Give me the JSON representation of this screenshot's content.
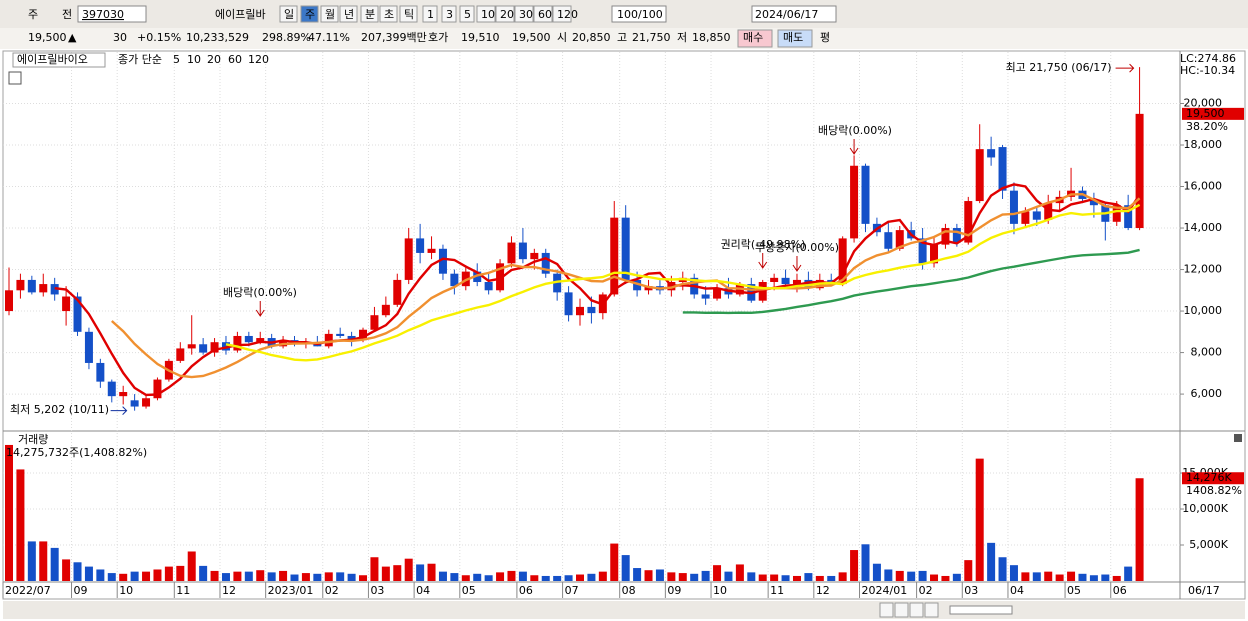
{
  "toolbar": {
    "row1": [
      "주",
      "전",
      "397030",
      "에이프릴바",
      "일",
      "주",
      "월",
      "년",
      "분",
      "초",
      "틱",
      "1",
      "3",
      "5",
      "10",
      "20",
      "30",
      "60",
      "120",
      "100/100",
      "2024/06/17"
    ],
    "row2": [
      "19,500",
      "▲",
      "30",
      "+0.15%",
      "10,233,529",
      "298.89%",
      "47.11%",
      "207,399백만",
      "호가",
      "19,510",
      "19,500",
      "시",
      "20,850",
      "고",
      "21,750",
      "저",
      "18,850",
      "매수",
      "매도",
      "평"
    ]
  },
  "chart_data": {
    "type": "candlestick",
    "title": "에이프릴바이오",
    "ma": {
      "label": "종가 단순",
      "periods": [
        5,
        10,
        20,
        60,
        120
      ],
      "colors": [
        "#e00000",
        "#f09030",
        "#f8f000",
        "#2e9a50",
        "#2090c0"
      ]
    },
    "lc": "LC:274.86",
    "hc": "HC:-10.34",
    "high_label": "최고 21,750 (06/17)",
    "low_label": "최저 5,202 (10/11)",
    "annotations": [
      "배당락(0.00%)",
      "권리락(-49.98%)",
      "무상증자(0.00%)",
      "배당락(0.00%)"
    ],
    "last_price_label": "19,500",
    "last_change_label": "38.20%",
    "last_date": "06/17",
    "categories": [
      "2022/07",
      null,
      null,
      null,
      null,
      null,
      "09",
      null,
      null,
      null,
      "10",
      null,
      null,
      null,
      null,
      "11",
      null,
      null,
      null,
      "12",
      null,
      null,
      null,
      "2023/01",
      null,
      null,
      null,
      null,
      "02",
      null,
      null,
      null,
      "03",
      null,
      null,
      null,
      "04",
      null,
      null,
      null,
      "05",
      null,
      null,
      null,
      null,
      "06",
      null,
      null,
      null,
      "07",
      null,
      null,
      null,
      null,
      "08",
      null,
      null,
      null,
      "09",
      null,
      null,
      null,
      "10",
      null,
      null,
      null,
      null,
      "11",
      null,
      null,
      null,
      "12",
      null,
      null,
      null,
      "2024/01",
      null,
      null,
      null,
      null,
      "02",
      null,
      null,
      null,
      "03",
      null,
      null,
      null,
      "04",
      null,
      null,
      null,
      null,
      "05",
      null,
      null,
      null,
      "06",
      null,
      null
    ],
    "open": [
      10000,
      11000,
      11500,
      10900,
      11300,
      10000,
      10700,
      9000,
      7500,
      6600,
      5900,
      5700,
      5400,
      5800,
      6700,
      7600,
      8200,
      8400,
      8000,
      8500,
      8100,
      8800,
      8500,
      8700,
      8300,
      8600,
      8400,
      8500,
      8300,
      8900,
      8800,
      8600,
      9100,
      9800,
      10300,
      11500,
      13500,
      12800,
      13000,
      11800,
      11200,
      11900,
      11400,
      11000,
      12300,
      13300,
      12500,
      12800,
      11800,
      10900,
      9800,
      10200,
      9900,
      10800,
      14500,
      11500,
      11000,
      11200,
      11000,
      11400,
      11600,
      10800,
      10600,
      11100,
      10800,
      11300,
      10500,
      11400,
      11600,
      11300,
      11500,
      11100,
      11500,
      11300,
      13500,
      17000,
      14200,
      13800,
      13000,
      13900,
      13500,
      12300,
      13200,
      14000,
      13300,
      15300,
      17800,
      17900,
      15800,
      14200,
      14800,
      14400,
      15200,
      15500,
      15800,
      15400,
      15100,
      14300,
      15100,
      14000
    ],
    "high": [
      12100,
      11800,
      11700,
      11800,
      11600,
      11200,
      10900,
      9200,
      7700,
      6700,
      6400,
      6000,
      6000,
      6800,
      7700,
      8500,
      9800,
      8700,
      8700,
      8800,
      9000,
      9000,
      9000,
      8900,
      8800,
      8800,
      8700,
      8800,
      9100,
      9200,
      9000,
      9200,
      10200,
      10700,
      11800,
      14000,
      14200,
      13600,
      13200,
      12000,
      12200,
      12300,
      11800,
      12500,
      13600,
      14000,
      13000,
      13000,
      12000,
      11200,
      10600,
      10700,
      10900,
      15300,
      15100,
      11900,
      11500,
      11500,
      11700,
      11900,
      11800,
      11200,
      11300,
      11600,
      11400,
      11600,
      11500,
      11800,
      12000,
      11800,
      11900,
      11800,
      11800,
      13600,
      17500,
      17100,
      14500,
      14300,
      14100,
      14300,
      14000,
      13600,
      14200,
      14200,
      15500,
      19000,
      18400,
      18000,
      16200,
      15000,
      15000,
      15600,
      15800,
      16900,
      16000,
      15700,
      15200,
      15300,
      15600,
      21750
    ],
    "low": [
      9800,
      10600,
      10800,
      10700,
      10500,
      9300,
      8800,
      7200,
      6300,
      5600,
      5500,
      5202,
      5300,
      5700,
      6600,
      7500,
      7900,
      7900,
      7800,
      7900,
      8000,
      8300,
      8400,
      8200,
      8200,
      8300,
      8200,
      8300,
      8200,
      8700,
      8300,
      8500,
      9000,
      9700,
      10200,
      11300,
      12300,
      12500,
      11500,
      10800,
      11000,
      11200,
      10800,
      10900,
      12100,
      12300,
      12000,
      11600,
      10500,
      9500,
      9300,
      9400,
      9600,
      10700,
      11300,
      10700,
      10800,
      10800,
      10700,
      11000,
      10600,
      10300,
      10500,
      10600,
      10700,
      10400,
      10400,
      11000,
      11100,
      10900,
      11000,
      11000,
      11200,
      11200,
      13300,
      13800,
      13600,
      12800,
      12900,
      13400,
      12000,
      12100,
      13000,
      13100,
      13200,
      15200,
      17000,
      15400,
      13700,
      14000,
      14100,
      14200,
      14800,
      15300,
      15200,
      14500,
      13400,
      14100,
      13900,
      13900
    ],
    "close": [
      11000,
      11500,
      10900,
      11300,
      10800,
      10700,
      9000,
      7500,
      6600,
      5900,
      6100,
      5400,
      5800,
      6700,
      7600,
      8200,
      8400,
      8000,
      8500,
      8100,
      8800,
      8500,
      8700,
      8300,
      8600,
      8400,
      8500,
      8300,
      8900,
      8800,
      8600,
      9100,
      9800,
      10300,
      11500,
      13500,
      12800,
      13000,
      11800,
      11200,
      11900,
      11400,
      11000,
      12300,
      13300,
      12500,
      12800,
      11800,
      10900,
      9800,
      10200,
      9900,
      10800,
      14500,
      11500,
      11000,
      11200,
      11000,
      11400,
      11600,
      10800,
      10600,
      11100,
      10800,
      11300,
      10500,
      11400,
      11600,
      11300,
      11500,
      11100,
      11500,
      11300,
      13500,
      17000,
      14200,
      13800,
      13000,
      13900,
      13500,
      12300,
      13200,
      14000,
      13300,
      15300,
      17800,
      17400,
      15800,
      14200,
      14800,
      14400,
      15200,
      15500,
      15800,
      15400,
      15100,
      14300,
      15100,
      14000,
      19500
    ],
    "ylim": [
      4270,
      22480
    ],
    "yticks": [
      {
        "value": 6000,
        "label": "6,000"
      },
      {
        "value": 8000,
        "label": "8,000"
      },
      {
        "value": 10000,
        "label": "10,000"
      },
      {
        "value": 12000,
        "label": "12,000"
      },
      {
        "value": 14000,
        "label": "14,000"
      },
      {
        "value": 16000,
        "label": "16,000"
      },
      {
        "value": 18000,
        "label": "18,000"
      },
      {
        "value": 20000,
        "label": "20,000"
      }
    ],
    "volume": {
      "title": "거래량",
      "last_label": "14,275,732주(1,408.82%)",
      "axis_label": "14,276K",
      "ratio_label": "1408.82%",
      "values": [
        18900,
        15500,
        5500,
        5500,
        4600,
        3000,
        2600,
        2000,
        1600,
        1100,
        1000,
        1300,
        1300,
        1600,
        2000,
        2100,
        4100,
        2100,
        1400,
        1100,
        1300,
        1300,
        1500,
        1200,
        1400,
        900,
        1100,
        1000,
        1200,
        1200,
        1000,
        800,
        3300,
        2000,
        2200,
        3100,
        2300,
        2400,
        1300,
        1100,
        800,
        1000,
        800,
        1200,
        1400,
        1300,
        800,
        700,
        700,
        800,
        900,
        1000,
        1300,
        5200,
        3600,
        1800,
        1500,
        1600,
        1200,
        1100,
        1000,
        1400,
        2200,
        1300,
        2300,
        1200,
        900,
        900,
        800,
        700,
        1100,
        700,
        700,
        1200,
        4300,
        5100,
        2400,
        1600,
        1400,
        1300,
        1400,
        900,
        700,
        1000,
        2900,
        17000,
        5300,
        3300,
        2200,
        1200,
        1200,
        1300,
        900,
        1300,
        1000,
        800,
        900,
        700,
        2000,
        14276
      ],
      "ylim": [
        0,
        20700
      ],
      "yticks": [
        {
          "value": 5000,
          "label": "5,000K"
        },
        {
          "value": 10000,
          "label": "10,000K"
        },
        {
          "value": 15000,
          "label": "15,000K"
        }
      ]
    },
    "up_color": "#e00000",
    "down_color": "#1450c8",
    "grid": true
  }
}
